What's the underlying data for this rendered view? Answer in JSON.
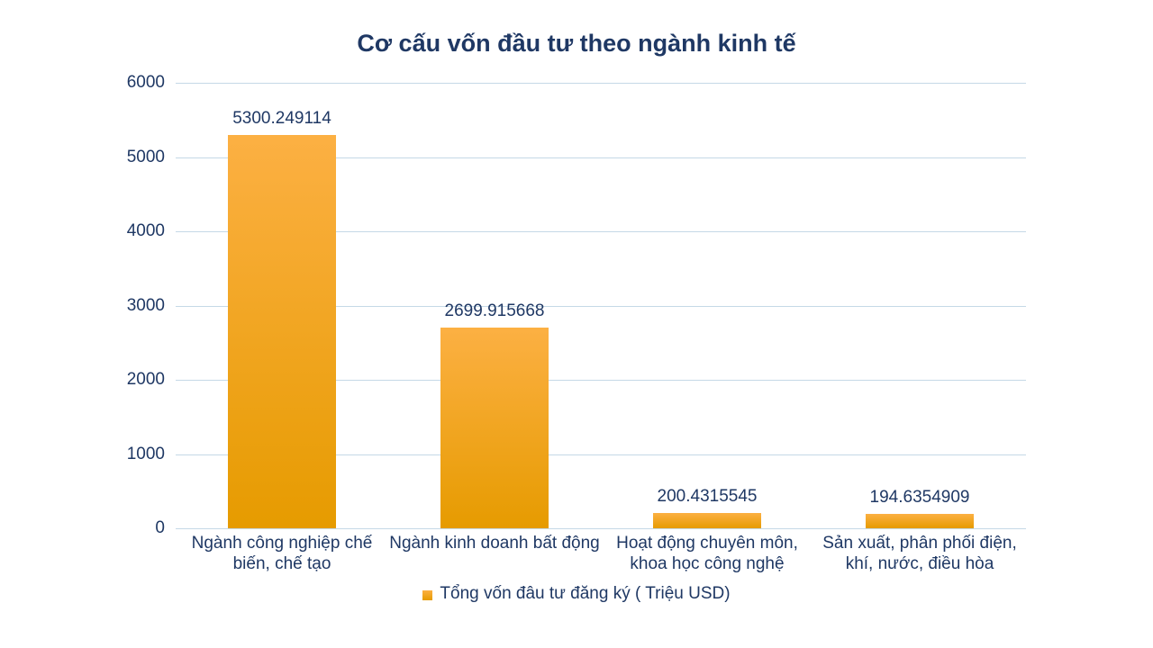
{
  "chart_data": {
    "type": "bar",
    "title": "Cơ cấu vốn đầu tư theo ngành kinh tế",
    "categories": [
      "Ngành công nghiệp chế\nbiến, chế tạo",
      "Ngành kinh doanh bất động",
      "Hoạt động chuyên môn,\nkhoa học công nghệ",
      "Sản xuất, phân phối điện,\nkhí, nước, điều hòa"
    ],
    "values": [
      5300.249114,
      2699.915668,
      200.4315545,
      194.6354909
    ],
    "value_labels": [
      "5300.249114",
      "2699.915668",
      "200.4315545",
      "194.6354909"
    ],
    "series_name": "Tổng vốn đâu tư đăng ký ( Triệu USD)",
    "xlabel": "",
    "ylabel": "",
    "ylim": [
      0,
      6000
    ],
    "yticks": [
      0,
      1000,
      2000,
      3000,
      4000,
      5000,
      6000
    ],
    "ytick_labels": [
      "0",
      "1000",
      "2000",
      "3000",
      "4000",
      "5000",
      "6000"
    ],
    "grid": true,
    "legend_position": "bottom",
    "colors": {
      "text": "#1F3864",
      "gridline": "#C5D9E6",
      "bar_gradient_top": "#FCB043",
      "bar_gradient_bottom": "#E69B00",
      "background": "#FFFFFF"
    }
  }
}
